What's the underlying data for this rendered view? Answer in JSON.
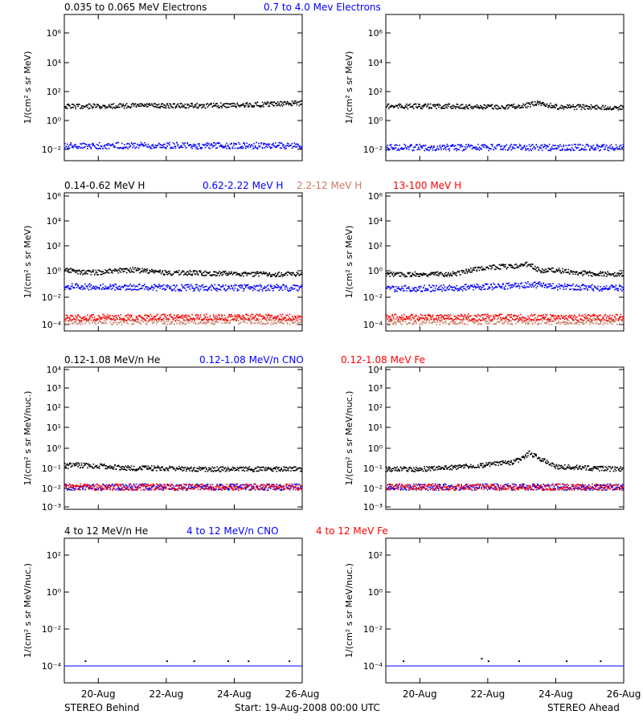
{
  "footer": {
    "left": "STEREO Behind",
    "center": "Start: 19-Aug-2008 00:00 UTC",
    "right": "STEREO Ahead"
  },
  "x_axis": {
    "tick_labels": [
      "20-Aug",
      "22-Aug",
      "24-Aug",
      "26-Aug"
    ]
  },
  "rows": [
    {
      "legend": [
        {
          "text": "0.035 to 0.065 MeV Electrons",
          "color": "#000000"
        },
        {
          "text": "0.7 to 4.0 Mev Electrons",
          "color": "#0000ff"
        }
      ],
      "ylabel": "1/(cm² s sr MeV)",
      "ytick_labels": [
        "10⁶",
        "10⁴",
        "10²",
        "10⁰",
        "10⁻²"
      ]
    },
    {
      "legend": [
        {
          "text": "0.14-0.62 MeV H",
          "color": "#000000"
        },
        {
          "text": "0.62-2.22 MeV H",
          "color": "#0000ff"
        },
        {
          "text": "2.2-12 MeV H",
          "color": "#c87a64"
        },
        {
          "text": "13-100 MeV H",
          "color": "#ff0000"
        }
      ],
      "ylabel": "1/(cm² s sr MeV)",
      "ytick_labels": [
        "10⁶",
        "10⁴",
        "10²",
        "10⁰",
        "10⁻²",
        "10⁻⁴"
      ]
    },
    {
      "legend": [
        {
          "text": "0.12-1.08 MeV/n He",
          "color": "#000000"
        },
        {
          "text": "0.12-1.08 MeV/n CNO",
          "color": "#0000ff"
        },
        {
          "text": "0.12-1.08 MeV Fe",
          "color": "#ff0000"
        }
      ],
      "ylabel": "1/(cm² s sr MeV/nuc.)",
      "ytick_labels": [
        "10⁴",
        "10³",
        "10²",
        "10¹",
        "10⁰",
        "10⁻¹",
        "10⁻²",
        "10⁻³"
      ]
    },
    {
      "legend": [
        {
          "text": "4 to 12 MeV/n He",
          "color": "#000000"
        },
        {
          "text": "4 to 12 MeV/n CNO",
          "color": "#0000ff"
        },
        {
          "text": "4 to 12 MeV Fe",
          "color": "#ff0000"
        }
      ],
      "ylabel": "1/(cm² s sr MeV/nuc.)",
      "ytick_labels": [
        "10²",
        "10⁰",
        "10⁻²",
        "10⁻⁴"
      ]
    }
  ],
  "chart_data": [
    {
      "type": "scatter",
      "spacecraft": "STEREO Behind",
      "panel": "electrons",
      "ylim": [
        0.003,
        3000000
      ],
      "yscale": "log",
      "x_unit": "day of Aug 2008",
      "xlim": [
        19.0,
        26.0
      ],
      "series": [
        {
          "name": "0.035 to 0.065 MeV Electrons",
          "color": "#000000",
          "x": [
            19.0,
            20.0,
            21.0,
            22.0,
            23.0,
            24.0,
            25.0,
            26.0
          ],
          "y": [
            10,
            10,
            11,
            11,
            11,
            12,
            14,
            17
          ]
        },
        {
          "name": "0.7 to 4.0 Mev Electrons",
          "color": "#0000ff",
          "x": [
            19.0,
            20.0,
            21.0,
            22.0,
            23.0,
            24.0,
            25.0,
            26.0
          ],
          "y": [
            0.02,
            0.02,
            0.02,
            0.02,
            0.02,
            0.02,
            0.02,
            0.02
          ]
        }
      ]
    },
    {
      "type": "scatter",
      "spacecraft": "STEREO Ahead",
      "panel": "electrons",
      "ylim": [
        0.003,
        3000000
      ],
      "yscale": "log",
      "x_unit": "day of Aug 2008",
      "xlim": [
        19.0,
        26.0
      ],
      "series": [
        {
          "name": "0.035 to 0.065 MeV Electrons",
          "color": "#000000",
          "x": [
            19.0,
            20.0,
            21.0,
            22.0,
            23.0,
            23.5,
            24.0,
            25.0,
            26.0
          ],
          "y": [
            10,
            10,
            10,
            9,
            10,
            17,
            9,
            9,
            8
          ]
        },
        {
          "name": "0.7 to 4.0 Mev Electrons",
          "color": "#0000ff",
          "x": [
            19.0,
            20.0,
            21.0,
            22.0,
            23.0,
            24.0,
            25.0,
            26.0
          ],
          "y": [
            0.015,
            0.015,
            0.015,
            0.015,
            0.015,
            0.015,
            0.015,
            0.015
          ]
        }
      ]
    },
    {
      "type": "scatter",
      "spacecraft": "STEREO Behind",
      "panel": "protons",
      "ylim": [
        5e-05,
        1000000
      ],
      "yscale": "log",
      "x_unit": "day of Aug 2008",
      "xlim": [
        19.0,
        26.0
      ],
      "series": [
        {
          "name": "0.14-0.62 MeV H",
          "color": "#000000",
          "x": [
            19.0,
            19.5,
            20.0,
            21.0,
            22.0,
            23.0,
            24.0,
            25.0,
            26.0
          ],
          "y": [
            2.0,
            1.3,
            1.3,
            2.0,
            1.2,
            1.1,
            1.0,
            0.9,
            0.9
          ]
        },
        {
          "name": "0.62-2.22 MeV H",
          "color": "#0000ff",
          "x": [
            19.0,
            20.0,
            21.0,
            22.0,
            23.0,
            24.0,
            25.0,
            26.0
          ],
          "y": [
            0.1,
            0.09,
            0.09,
            0.08,
            0.08,
            0.08,
            0.08,
            0.08
          ]
        },
        {
          "name": "2.2-12 MeV H",
          "color": "#c87a64",
          "x": [
            19.0,
            20.0,
            21.0,
            22.0,
            23.0,
            24.0,
            25.0,
            26.0
          ],
          "y": [
            0.0002,
            0.0002,
            0.0002,
            0.0002,
            0.0002,
            0.0002,
            0.0002,
            0.0002
          ]
        },
        {
          "name": "13-100 MeV H",
          "color": "#ff0000",
          "x": [
            19.0,
            20.0,
            21.0,
            22.0,
            23.0,
            24.0,
            25.0,
            26.0
          ],
          "y": [
            0.0004,
            0.0004,
            0.0004,
            0.0004,
            0.0004,
            0.0004,
            0.0004,
            0.0004
          ]
        }
      ]
    },
    {
      "type": "scatter",
      "spacecraft": "STEREO Ahead",
      "panel": "protons",
      "ylim": [
        5e-05,
        1000000
      ],
      "yscale": "log",
      "x_unit": "day of Aug 2008",
      "xlim": [
        19.0,
        26.0
      ],
      "series": [
        {
          "name": "0.14-0.62 MeV H",
          "color": "#000000",
          "x": [
            19.0,
            20.0,
            21.0,
            21.7,
            22.3,
            22.9,
            23.2,
            23.5,
            24.0,
            25.0,
            26.0
          ],
          "y": [
            0.9,
            0.9,
            1.0,
            2.5,
            3.5,
            4.0,
            6.0,
            1.8,
            1.8,
            1.0,
            0.9
          ]
        },
        {
          "name": "0.62-2.22 MeV H",
          "color": "#0000ff",
          "x": [
            19.0,
            20.0,
            21.0,
            22.0,
            23.0,
            23.3,
            24.0,
            25.0,
            26.0
          ],
          "y": [
            0.07,
            0.07,
            0.08,
            0.1,
            0.12,
            0.15,
            0.1,
            0.08,
            0.08
          ]
        },
        {
          "name": "2.2-12 MeV H",
          "color": "#c87a64",
          "x": [
            19.0,
            20.0,
            21.0,
            22.0,
            23.0,
            24.0,
            25.0,
            26.0
          ],
          "y": [
            0.0002,
            0.0002,
            0.0002,
            0.0002,
            0.0002,
            0.0002,
            0.0002,
            0.0002
          ]
        },
        {
          "name": "13-100 MeV H",
          "color": "#ff0000",
          "x": [
            19.0,
            20.0,
            21.0,
            22.0,
            23.0,
            24.0,
            25.0,
            26.0
          ],
          "y": [
            0.0004,
            0.0004,
            0.0004,
            0.0004,
            0.0004,
            0.0004,
            0.0004,
            0.0004
          ]
        }
      ]
    },
    {
      "type": "scatter",
      "spacecraft": "STEREO Behind",
      "panel": "low-energy heavy ions",
      "ylim": [
        0.001,
        10000
      ],
      "yscale": "log",
      "x_unit": "day of Aug 2008",
      "xlim": [
        19.0,
        26.0
      ],
      "series": [
        {
          "name": "0.12-1.08 MeV/n He",
          "color": "#000000",
          "x": [
            19.0,
            20.0,
            21.0,
            22.0,
            23.0,
            24.0,
            25.0,
            26.0
          ],
          "y": [
            0.15,
            0.13,
            0.1,
            0.1,
            0.09,
            0.09,
            0.09,
            0.09
          ]
        },
        {
          "name": "0.12-1.08 MeV/n CNO",
          "color": "#0000ff",
          "x": [
            19.0,
            20.0,
            21.0,
            22.0,
            23.0,
            24.0,
            25.0,
            26.0
          ],
          "y": [
            0.011,
            0.011,
            0.011,
            0.011,
            0.011,
            0.011,
            0.011,
            0.011
          ]
        },
        {
          "name": "0.12-1.08 MeV Fe",
          "color": "#ff0000",
          "x": [
            19.0,
            20.0,
            21.0,
            22.0,
            23.0,
            24.0,
            25.0,
            26.0
          ],
          "y": [
            0.011,
            0.011,
            0.011,
            0.011,
            0.011,
            0.011,
            0.011,
            0.011
          ]
        }
      ]
    },
    {
      "type": "scatter",
      "spacecraft": "STEREO Ahead",
      "panel": "low-energy heavy ions",
      "ylim": [
        0.001,
        10000
      ],
      "yscale": "log",
      "x_unit": "day of Aug 2008",
      "xlim": [
        19.0,
        26.0
      ],
      "series": [
        {
          "name": "0.12-1.08 MeV/n He",
          "color": "#000000",
          "x": [
            19.0,
            20.0,
            21.0,
            22.0,
            22.7,
            23.0,
            23.2,
            24.0,
            25.0,
            26.0
          ],
          "y": [
            0.09,
            0.09,
            0.11,
            0.15,
            0.2,
            0.3,
            0.6,
            0.12,
            0.1,
            0.09
          ]
        },
        {
          "name": "0.12-1.08 MeV/n CNO",
          "color": "#0000ff",
          "x": [
            19.0,
            20.0,
            21.0,
            22.0,
            23.0,
            24.0,
            25.0,
            26.0
          ],
          "y": [
            0.011,
            0.011,
            0.011,
            0.011,
            0.011,
            0.011,
            0.011,
            0.011
          ]
        },
        {
          "name": "0.12-1.08 MeV Fe",
          "color": "#ff0000",
          "x": [
            19.0,
            20.0,
            21.0,
            22.0,
            23.0,
            24.0,
            25.0,
            26.0
          ],
          "y": [
            0.011,
            0.011,
            0.011,
            0.011,
            0.011,
            0.011,
            0.011,
            0.011
          ]
        }
      ]
    },
    {
      "type": "scatter",
      "spacecraft": "STEREO Behind",
      "panel": "high-energy heavy ions",
      "ylim": [
        1e-05,
        3000
      ],
      "yscale": "log",
      "x_unit": "day of Aug 2008",
      "xlim": [
        19.0,
        26.0
      ],
      "series": [
        {
          "name": "4 to 12 MeV/n He",
          "color": "#000000",
          "x": [
            19.6,
            22.0,
            22.8,
            23.8,
            24.4,
            25.6
          ],
          "y": [
            0.00018,
            0.00018,
            0.00018,
            0.00018,
            0.00018,
            0.00018
          ]
        },
        {
          "name": "4 to 12 MeV/n CNO",
          "color": "#0000ff",
          "x": [
            19.0,
            26.0
          ],
          "y": [
            0.0001,
            0.0001
          ]
        }
      ]
    },
    {
      "type": "scatter",
      "spacecraft": "STEREO Ahead",
      "panel": "high-energy heavy ions",
      "ylim": [
        1e-05,
        3000
      ],
      "yscale": "log",
      "x_unit": "day of Aug 2008",
      "xlim": [
        19.0,
        26.0
      ],
      "series": [
        {
          "name": "4 to 12 MeV/n He",
          "color": "#000000",
          "x": [
            19.5,
            21.8,
            22.0,
            22.9,
            24.3,
            25.3
          ],
          "y": [
            0.00018,
            0.00025,
            0.00018,
            0.00018,
            0.00018,
            0.00018
          ]
        },
        {
          "name": "4 to 12 MeV/n CNO",
          "color": "#0000ff",
          "x": [
            19.0,
            26.0
          ],
          "y": [
            0.0001,
            0.0001
          ]
        }
      ]
    }
  ]
}
